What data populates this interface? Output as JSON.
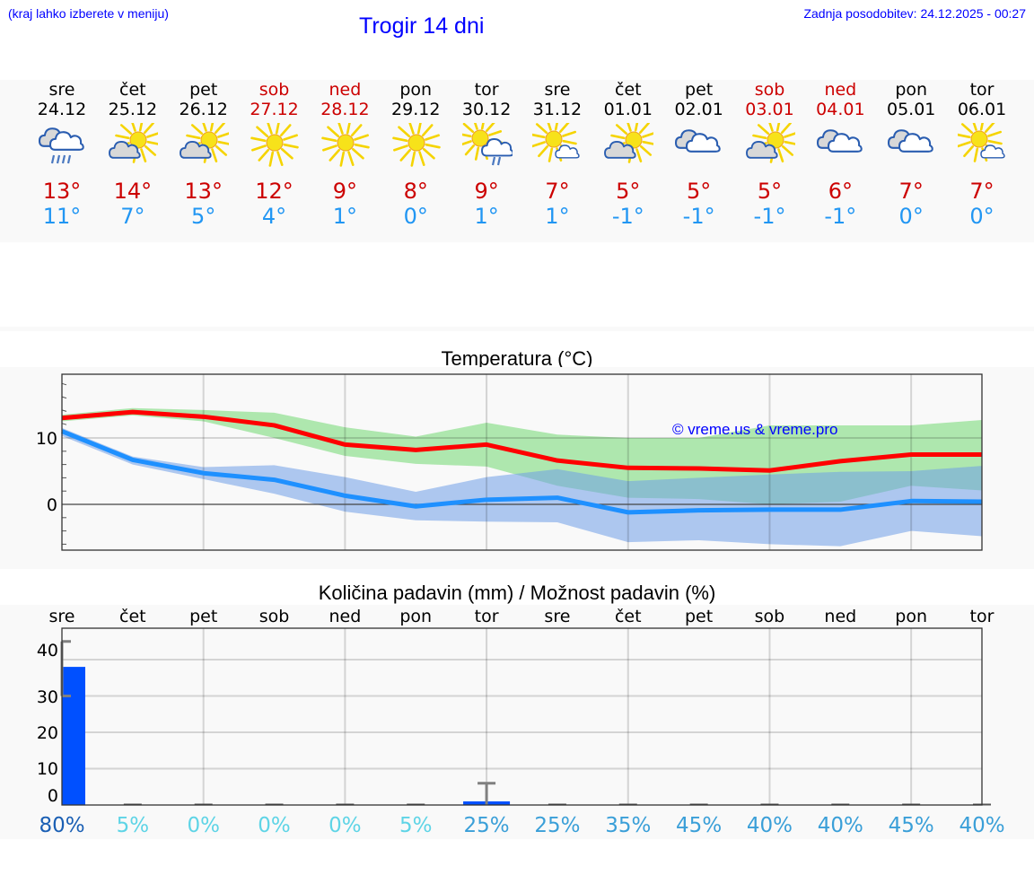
{
  "header": {
    "hint": "(kraj lahko izberete v meniju)",
    "title": "Trogir 14 dni",
    "updated": "Zadnja posodobitev: 24.12.2025 - 00:27"
  },
  "colors": {
    "link_blue": "#0000ff",
    "max_temp": "#cc0000",
    "min_temp": "#2196f3",
    "max_line": "#ff0000",
    "min_line": "#1e90ff",
    "max_band": "#aeeaaf",
    "min_band": "#aec6f2",
    "overlap_band": "#7ec9a8",
    "precip_bar": "#0050ff",
    "error_bar": "#808080"
  },
  "days": [
    {
      "name": "sre",
      "date": "24.12",
      "weekend": false,
      "icon": "cloud-rain-icon",
      "max": "13°",
      "min": "11°"
    },
    {
      "name": "čet",
      "date": "25.12",
      "weekend": false,
      "icon": "sun-cloud-icon",
      "max": "14°",
      "min": "7°"
    },
    {
      "name": "pet",
      "date": "26.12",
      "weekend": false,
      "icon": "sun-cloud-icon",
      "max": "13°",
      "min": "5°"
    },
    {
      "name": "sob",
      "date": "27.12",
      "weekend": true,
      "icon": "sun-icon",
      "max": "12°",
      "min": "4°"
    },
    {
      "name": "ned",
      "date": "28.12",
      "weekend": true,
      "icon": "sun-icon",
      "max": "9°",
      "min": "1°"
    },
    {
      "name": "pon",
      "date": "29.12",
      "weekend": false,
      "icon": "sun-icon",
      "max": "8°",
      "min": "0°"
    },
    {
      "name": "tor",
      "date": "30.12",
      "weekend": false,
      "icon": "sun-cloud-shower-icon",
      "max": "9°",
      "min": "1°"
    },
    {
      "name": "sre",
      "date": "31.12",
      "weekend": false,
      "icon": "sun-small-cloud-icon",
      "max": "7°",
      "min": "1°"
    },
    {
      "name": "čet",
      "date": "01.01",
      "weekend": false,
      "icon": "sun-cloud-icon",
      "max": "5°",
      "min": "-1°"
    },
    {
      "name": "pet",
      "date": "02.01",
      "weekend": false,
      "icon": "clouds-icon",
      "max": "5°",
      "min": "-1°"
    },
    {
      "name": "sob",
      "date": "03.01",
      "weekend": true,
      "icon": "sun-cloud-icon",
      "max": "5°",
      "min": "-1°"
    },
    {
      "name": "ned",
      "date": "04.01",
      "weekend": true,
      "icon": "clouds-icon",
      "max": "6°",
      "min": "-1°"
    },
    {
      "name": "pon",
      "date": "05.01",
      "weekend": false,
      "icon": "clouds-icon",
      "max": "7°",
      "min": "0°"
    },
    {
      "name": "tor",
      "date": "06.01",
      "weekend": false,
      "icon": "sun-small-cloud-icon",
      "max": "7°",
      "min": "0°"
    }
  ],
  "chart_data": [
    {
      "type": "line",
      "title": "Temperatura (°C)",
      "xlabel": "",
      "ylabel": "",
      "categories": [
        "24.12",
        "25.12",
        "26.12",
        "27.12",
        "28.12",
        "29.12",
        "30.12",
        "31.12",
        "01.01",
        "02.01",
        "03.01",
        "04.01",
        "05.01",
        "06.01"
      ],
      "ylim": [
        -7,
        19
      ],
      "yticks": [
        0,
        10
      ],
      "grid": true,
      "annotation": "© vreme.us & vreme.pro",
      "series": [
        {
          "name": "max",
          "color": "#ff0000",
          "values": [
            13.0,
            13.9,
            13.2,
            11.9,
            9.0,
            8.2,
            9.0,
            6.6,
            5.5,
            5.4,
            5.1,
            6.5,
            7.5,
            7.5
          ]
        },
        {
          "name": "max_band_upper",
          "color": "#aeeaaf",
          "values": [
            13.5,
            14.5,
            14.2,
            13.8,
            11.6,
            10.2,
            12.3,
            10.5,
            10.0,
            10.0,
            11.9,
            11.9,
            11.9,
            12.7
          ]
        },
        {
          "name": "max_band_lower",
          "color": "#aeeaaf",
          "values": [
            12.5,
            13.4,
            12.5,
            10.0,
            7.3,
            6.1,
            5.7,
            2.8,
            1.0,
            0.8,
            0.0,
            0.4,
            2.8,
            2.1
          ]
        },
        {
          "name": "min",
          "color": "#1e90ff",
          "values": [
            11.0,
            6.7,
            4.7,
            3.7,
            1.3,
            -0.3,
            0.7,
            1.0,
            -1.2,
            -0.9,
            -0.8,
            -0.8,
            0.5,
            0.4
          ]
        },
        {
          "name": "min_band_upper",
          "color": "#aec6f2",
          "values": [
            11.5,
            7.2,
            5.6,
            5.9,
            4.1,
            1.9,
            4.1,
            5.3,
            3.5,
            4.0,
            4.5,
            4.9,
            5.0,
            5.8
          ]
        },
        {
          "name": "min_band_lower",
          "color": "#aec6f2",
          "values": [
            10.3,
            6.0,
            3.8,
            1.6,
            -1.1,
            -2.4,
            -2.6,
            -2.7,
            -5.7,
            -5.4,
            -6.0,
            -6.3,
            -4.0,
            -4.8
          ]
        }
      ]
    },
    {
      "type": "bar",
      "title": "Količina padavin (mm) / Možnost padavin (%)",
      "xlabel": "",
      "ylabel": "",
      "categories": [
        "sre",
        "čet",
        "pet",
        "sob",
        "ned",
        "pon",
        "tor",
        "sre",
        "čet",
        "pet",
        "sob",
        "ned",
        "pon",
        "tor"
      ],
      "ylim": [
        0,
        47
      ],
      "yticks": [
        0,
        10,
        20,
        30,
        40
      ],
      "grid": true,
      "series": [
        {
          "name": "Količina padavin (mm)",
          "color": "#0050ff",
          "values": [
            38,
            0,
            0,
            0,
            0,
            0,
            1,
            0,
            0,
            0,
            0,
            0,
            0,
            0
          ]
        },
        {
          "name": "error_low",
          "values": [
            30,
            0,
            0,
            0,
            0,
            0,
            0,
            0,
            0,
            0,
            0,
            0,
            0,
            0
          ]
        },
        {
          "name": "error_high",
          "values": [
            45,
            0,
            0,
            0,
            0,
            0,
            6,
            0,
            0,
            0,
            0,
            0,
            0,
            0
          ]
        },
        {
          "name": "Možnost padavin (%)",
          "values": [
            80,
            5,
            0,
            0,
            0,
            5,
            25,
            25,
            35,
            45,
            40,
            40,
            45,
            40
          ]
        }
      ],
      "probability_labels": [
        "80%",
        "5%",
        "0%",
        "0%",
        "0%",
        "5%",
        "25%",
        "25%",
        "35%",
        "45%",
        "40%",
        "40%",
        "45%",
        "40%"
      ],
      "probability_colors": [
        "#1a5fb4",
        "#5ed4e6",
        "#5ed4e6",
        "#5ed4e6",
        "#5ed4e6",
        "#5ed4e6",
        "#3a9fd8",
        "#3a9fd8",
        "#3a9fd8",
        "#3a9fd8",
        "#3a9fd8",
        "#3a9fd8",
        "#3a9fd8",
        "#3a9fd8"
      ]
    }
  ]
}
